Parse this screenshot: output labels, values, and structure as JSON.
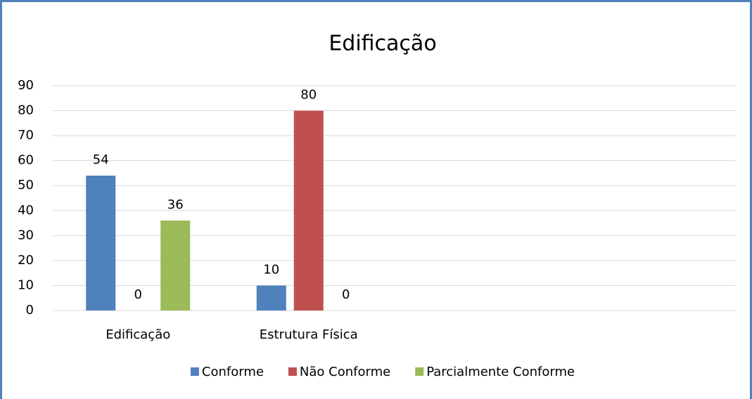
{
  "chart_data": {
    "type": "bar",
    "title": "Edificação",
    "categories": [
      "Edificação",
      "Estrutura Física",
      null,
      null
    ],
    "series": [
      {
        "name": "Conforme",
        "color": "#4f81bd",
        "values": [
          54,
          10,
          null,
          null
        ]
      },
      {
        "name": "Não Conforme",
        "color": "#c0504d",
        "values": [
          0,
          80,
          null,
          null
        ]
      },
      {
        "name": "Parcialmente Conforme",
        "color": "#9bbb59",
        "values": [
          36,
          0,
          null,
          null
        ]
      }
    ],
    "ylim": [
      0,
      90
    ],
    "yticks": [
      0,
      10,
      20,
      30,
      40,
      50,
      60,
      70,
      80,
      90
    ],
    "grid": true,
    "legend": "bottom"
  }
}
